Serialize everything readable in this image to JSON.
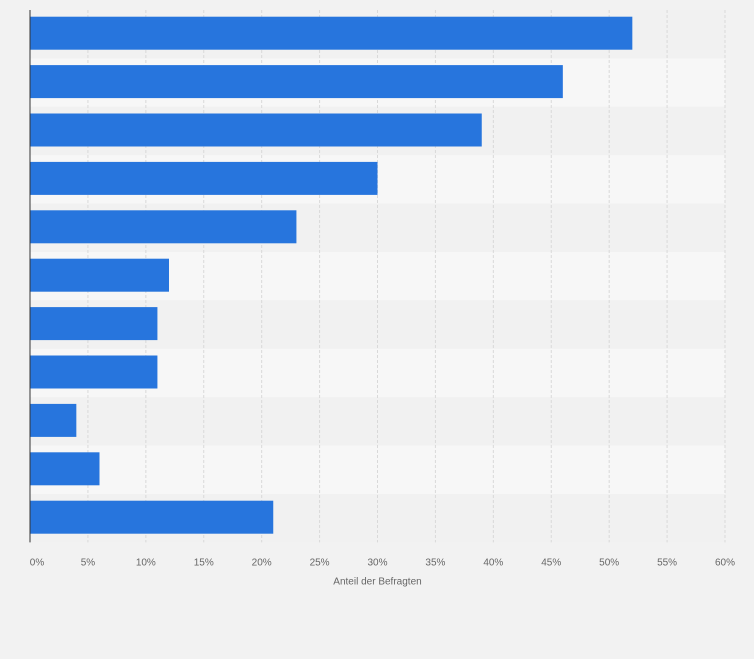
{
  "chart_data": {
    "type": "bar",
    "orientation": "horizontal",
    "categories": [
      "",
      "",
      "",
      "",
      "",
      "",
      "",
      "",
      "",
      "",
      ""
    ],
    "values": [
      52,
      46,
      39,
      30,
      23,
      12,
      11,
      11,
      4,
      6,
      21
    ],
    "unit": "%",
    "xlabel": "Anteil der Befragten",
    "ylabel": "",
    "xlim": [
      0,
      60
    ],
    "ticks": [
      "0%",
      "5%",
      "10%",
      "15%",
      "20%",
      "25%",
      "30%",
      "35%",
      "40%",
      "45%",
      "50%",
      "55%",
      "60%"
    ],
    "grid": true,
    "legend": "none"
  },
  "colors": {
    "bar": "#2775dd",
    "background": "#f2f2f2",
    "band_light": "#f7f7f7",
    "band_dark": "#f1f1f1",
    "grid": "#d9d9d9",
    "axis": "#333333",
    "text": "#666666"
  }
}
